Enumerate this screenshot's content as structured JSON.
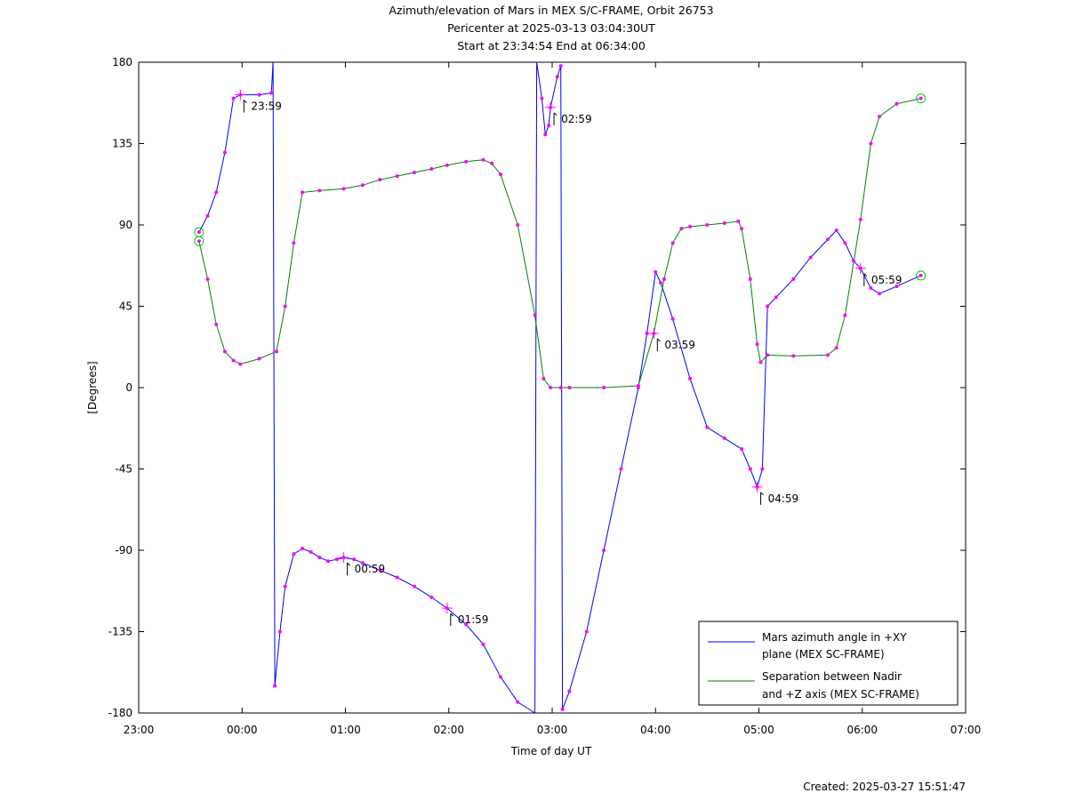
{
  "chart_data": {
    "type": "line",
    "title_lines": [
      "Azimuth/elevation of Mars in MEX S/C-FRAME,  Orbit 26753",
      "Pericenter at 2025-03-13 03:04:30UT",
      "Start at 23:34:54 End at 06:34:00"
    ],
    "xlabel": "Time of day UT",
    "ylabel": "[Degrees]",
    "xlim_hours": [
      23,
      31
    ],
    "ylim": [
      -180,
      180
    ],
    "x_ticks": [
      "23:00",
      "00:00",
      "01:00",
      "02:00",
      "03:00",
      "04:00",
      "05:00",
      "06:00",
      "07:00"
    ],
    "y_ticks": [
      180,
      135,
      90,
      45,
      0,
      -45,
      -90,
      -135,
      -180
    ],
    "grid": false,
    "legend_position": "bottom-right",
    "series": [
      {
        "name_lines": [
          "Mars azimuth angle in +XY",
          "plane (MEX SC-FRAME)"
        ],
        "color": "#0000ff",
        "points": [
          [
            "23:35",
            86
          ],
          [
            "23:40",
            95
          ],
          [
            "23:45",
            108
          ],
          [
            "23:50",
            130
          ],
          [
            "23:55",
            160
          ],
          [
            "23:59",
            162
          ],
          [
            "00:10",
            162
          ],
          [
            "00:17",
            163
          ],
          [
            "00:18",
            180
          ],
          [
            "00:19",
            -165
          ],
          [
            "00:22",
            -135
          ],
          [
            "00:25",
            -110
          ],
          [
            "00:30",
            -92
          ],
          [
            "00:35",
            -89
          ],
          [
            "00:40",
            -91
          ],
          [
            "00:45",
            -94
          ],
          [
            "00:50",
            -96
          ],
          [
            "00:55",
            -95
          ],
          [
            "00:59",
            -94
          ],
          [
            "01:05",
            -95
          ],
          [
            "01:10",
            -97
          ],
          [
            "01:20",
            -101
          ],
          [
            "01:30",
            -105
          ],
          [
            "01:40",
            -110
          ],
          [
            "01:50",
            -116
          ],
          [
            "01:59",
            -122
          ],
          [
            "02:10",
            -131
          ],
          [
            "02:20",
            -142
          ],
          [
            "02:30",
            -160
          ],
          [
            "02:40",
            -174
          ],
          [
            "02:50",
            -180
          ],
          [
            "02:51",
            180
          ],
          [
            "02:54",
            160
          ],
          [
            "02:56",
            140
          ],
          [
            "02:58",
            145
          ],
          [
            "02:59",
            155
          ],
          [
            "03:03",
            172
          ],
          [
            "03:05",
            178
          ],
          [
            "03:06",
            -178
          ],
          [
            "03:10",
            -168
          ],
          [
            "03:20",
            -135
          ],
          [
            "03:30",
            -90
          ],
          [
            "03:40",
            -45
          ],
          [
            "03:50",
            0
          ],
          [
            "03:55",
            30
          ],
          [
            "04:00",
            64
          ],
          [
            "04:03",
            58
          ],
          [
            "04:10",
            38
          ],
          [
            "04:20",
            5
          ],
          [
            "04:30",
            -22
          ],
          [
            "04:40",
            -28
          ],
          [
            "04:50",
            -34
          ],
          [
            "04:55",
            -45
          ],
          [
            "04:59",
            -55
          ],
          [
            "05:02",
            -45
          ],
          [
            "05:05",
            45
          ],
          [
            "05:10",
            50
          ],
          [
            "05:20",
            60
          ],
          [
            "05:30",
            72
          ],
          [
            "05:40",
            82
          ],
          [
            "05:45",
            87
          ],
          [
            "05:50",
            80
          ],
          [
            "05:55",
            70
          ],
          [
            "05:59",
            66
          ],
          [
            "06:05",
            55
          ],
          [
            "06:10",
            52
          ],
          [
            "06:20",
            56
          ],
          [
            "06:34",
            62
          ]
        ]
      },
      {
        "name_lines": [
          "Separation between Nadir",
          "and +Z axis (MEX SC-FRAME)"
        ],
        "color": "#008000",
        "points": [
          [
            "23:35",
            81
          ],
          [
            "23:40",
            60
          ],
          [
            "23:45",
            35
          ],
          [
            "23:50",
            20
          ],
          [
            "23:55",
            15
          ],
          [
            "23:59",
            13
          ],
          [
            "00:10",
            16
          ],
          [
            "00:20",
            20
          ],
          [
            "00:25",
            45
          ],
          [
            "00:30",
            80
          ],
          [
            "00:35",
            108
          ],
          [
            "00:45",
            109
          ],
          [
            "00:59",
            110
          ],
          [
            "01:10",
            112
          ],
          [
            "01:20",
            115
          ],
          [
            "01:30",
            117
          ],
          [
            "01:40",
            119
          ],
          [
            "01:50",
            121
          ],
          [
            "01:59",
            123
          ],
          [
            "02:10",
            125
          ],
          [
            "02:20",
            126
          ],
          [
            "02:25",
            124
          ],
          [
            "02:30",
            118
          ],
          [
            "02:40",
            90
          ],
          [
            "02:50",
            40
          ],
          [
            "02:55",
            5
          ],
          [
            "02:59",
            0
          ],
          [
            "03:05",
            0
          ],
          [
            "03:10",
            0
          ],
          [
            "03:30",
            0
          ],
          [
            "03:50",
            1
          ],
          [
            "03:59",
            30
          ],
          [
            "04:05",
            60
          ],
          [
            "04:10",
            80
          ],
          [
            "04:15",
            88
          ],
          [
            "04:20",
            89
          ],
          [
            "04:30",
            90
          ],
          [
            "04:40",
            91
          ],
          [
            "04:48",
            92
          ],
          [
            "04:50",
            88
          ],
          [
            "04:55",
            60
          ],
          [
            "04:59",
            24
          ],
          [
            "05:01",
            14
          ],
          [
            "05:05",
            18
          ],
          [
            "05:20",
            17.5
          ],
          [
            "05:40",
            18
          ],
          [
            "05:45",
            22
          ],
          [
            "05:50",
            40
          ],
          [
            "05:59",
            93
          ],
          [
            "06:05",
            135
          ],
          [
            "06:10",
            150
          ],
          [
            "06:20",
            157
          ],
          [
            "06:34",
            160
          ]
        ]
      }
    ],
    "hour_labels": [
      {
        "text": "23:59",
        "at": "23:59",
        "series": 0
      },
      {
        "text": "00:59",
        "at": "00:59",
        "series": 0
      },
      {
        "text": "01:59",
        "at": "01:59",
        "series": 0
      },
      {
        "text": "02:59",
        "at": "02:59",
        "series": 0
      },
      {
        "text": "03:59",
        "at": "03:59",
        "series": 1
      },
      {
        "text": "04:59",
        "at": "04:59",
        "series": 0
      },
      {
        "text": "05:59",
        "at": "05:59",
        "series": 0
      }
    ]
  },
  "footer": {
    "created": "Created: 2025-03-27 15:51:47"
  }
}
